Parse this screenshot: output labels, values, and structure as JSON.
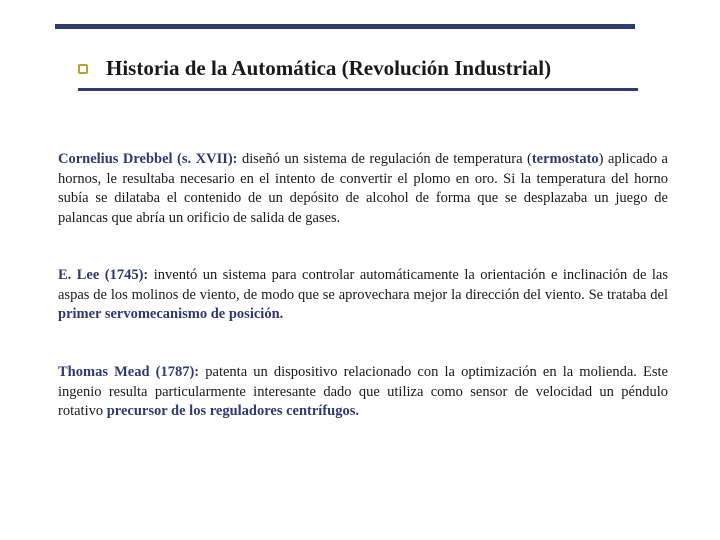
{
  "colors": {
    "bar": "#2f3a6e",
    "bullet_border": "#b8a23a",
    "text": "#1a1a1a",
    "highlight": "#2f3a6e",
    "background": "#ffffff"
  },
  "typography": {
    "title_fontsize": 21,
    "body_fontsize": 14.5,
    "font_family": "Georgia, Times New Roman, serif"
  },
  "title": "Historia de la Automática (Revolución Industrial)",
  "paragraphs": [
    {
      "lead_highlight": "Cornelius Drebbel (s. XVII):",
      "pre": " diseñó un sistema de regulación de temperatura (",
      "mid_highlight": "termostato",
      "post": ") aplicado a hornos, le resultaba necesario en el intento de convertir el plomo en oro. Si la temperatura del horno subía se dilataba el contenido de un depósito de alcohol de forma que se desplazaba un juego de palancas que abría un orificio de salida de gases."
    },
    {
      "lead_highlight": "E. Lee (1745):",
      "pre": " inventó un sistema para controlar automáticamente la orientación e inclinación de las aspas de los molinos de viento, de modo que se aprovechara mejor la dirección del viento. Se trataba del ",
      "end_highlight": "primer servomecanismo de posición."
    },
    {
      "lead_highlight": "Thomas Mead (1787):",
      "pre": " patenta un dispositivo relacionado con la optimización en la molienda. Este ingenio resulta particularmente interesante dado que utiliza como sensor de velocidad un péndulo rotativo ",
      "end_highlight": "precursor de los reguladores centrífugos."
    }
  ]
}
